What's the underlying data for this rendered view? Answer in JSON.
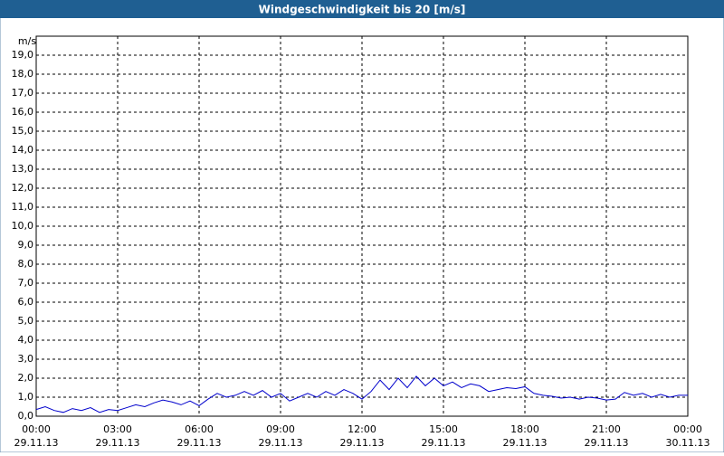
{
  "chart_data": {
    "type": "line",
    "title": "Windgeschwindigkeit bis 20 [m/s]",
    "y_label": "m/s",
    "x": [
      0,
      20,
      40,
      60,
      80,
      100,
      120,
      140,
      160,
      180,
      200,
      220,
      240,
      260,
      280,
      300,
      320,
      340,
      360,
      380,
      400,
      420,
      440,
      460,
      480,
      500,
      520,
      540,
      560,
      580,
      600,
      620,
      640,
      660,
      680,
      700,
      720,
      740,
      760,
      780,
      800,
      820,
      840,
      860,
      880,
      900,
      920,
      940,
      960,
      980,
      1000,
      1020,
      1040,
      1060,
      1080,
      1100,
      1120,
      1140,
      1160,
      1180,
      1200,
      1220,
      1240,
      1260,
      1280,
      1300,
      1320,
      1340,
      1360,
      1380,
      1400,
      1420,
      1440
    ],
    "series": [
      {
        "name": "Windgeschwindigkeit",
        "color": "#0000cc",
        "values": [
          0.35,
          0.5,
          0.3,
          0.2,
          0.4,
          0.3,
          0.45,
          0.2,
          0.35,
          0.3,
          0.45,
          0.6,
          0.5,
          0.7,
          0.85,
          0.75,
          0.6,
          0.8,
          0.55,
          0.9,
          1.2,
          1.0,
          1.1,
          1.3,
          1.1,
          1.35,
          1.0,
          1.2,
          0.8,
          1.0,
          1.2,
          1.0,
          1.3,
          1.1,
          1.4,
          1.2,
          0.9,
          1.3,
          1.9,
          1.4,
          2.0,
          1.5,
          2.1,
          1.6,
          2.0,
          1.6,
          1.8,
          1.5,
          1.7,
          1.6,
          1.3,
          1.4,
          1.5,
          1.45,
          1.55,
          1.2,
          1.1,
          1.05,
          0.95,
          1.0,
          0.9,
          1.0,
          0.95,
          0.85,
          0.9,
          1.25,
          1.1,
          1.2,
          1.0,
          1.15,
          1.0,
          1.1,
          1.1
        ]
      }
    ],
    "xlim": [
      0,
      1440
    ],
    "xticks": [
      {
        "value": 0,
        "label": "00:00"
      },
      {
        "value": 180,
        "label": "03:00"
      },
      {
        "value": 360,
        "label": "06:00"
      },
      {
        "value": 540,
        "label": "09:00"
      },
      {
        "value": 720,
        "label": "12:00"
      },
      {
        "value": 900,
        "label": "15:00"
      },
      {
        "value": 1080,
        "label": "18:00"
      },
      {
        "value": 1260,
        "label": "21:00"
      },
      {
        "value": 1440,
        "label": "00:00"
      }
    ],
    "xtick_dates": [
      "29.11.13",
      "29.11.13",
      "29.11.13",
      "29.11.13",
      "29.11.13",
      "29.11.13",
      "29.11.13",
      "29.11.13",
      "30.11.13"
    ],
    "ylim": [
      0,
      20
    ],
    "yticks": [
      {
        "value": 0,
        "label": "0,0"
      },
      {
        "value": 1,
        "label": "1,0"
      },
      {
        "value": 2,
        "label": "2,0"
      },
      {
        "value": 3,
        "label": "3,0"
      },
      {
        "value": 4,
        "label": "4,0"
      },
      {
        "value": 5,
        "label": "5,0"
      },
      {
        "value": 6,
        "label": "6,0"
      },
      {
        "value": 7,
        "label": "7,0"
      },
      {
        "value": 8,
        "label": "8,0"
      },
      {
        "value": 9,
        "label": "9,0"
      },
      {
        "value": 10,
        "label": "10,0"
      },
      {
        "value": 11,
        "label": "11,0"
      },
      {
        "value": 12,
        "label": "12,0"
      },
      {
        "value": 13,
        "label": "13,0"
      },
      {
        "value": 14,
        "label": "14,0"
      },
      {
        "value": 15,
        "label": "15,0"
      },
      {
        "value": 16,
        "label": "16,0"
      },
      {
        "value": 17,
        "label": "17,0"
      },
      {
        "value": 18,
        "label": "18,0"
      },
      {
        "value": 19,
        "label": "19,0"
      }
    ],
    "grid": true
  }
}
